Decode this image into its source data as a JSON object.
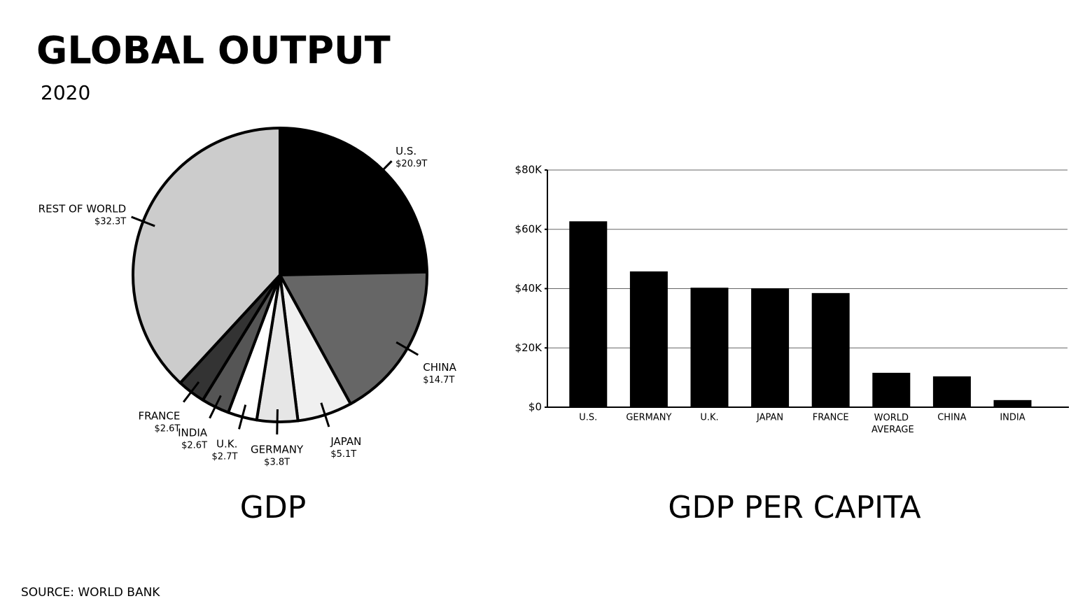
{
  "title": "GLOBAL OUTPUT",
  "subtitle": "2020",
  "source": "SOURCE: WORLD BANK",
  "chart_data": [
    {
      "type": "pie",
      "title": "GDP",
      "categories": [
        "U.S.",
        "CHINA",
        "JAPAN",
        "GERMANY",
        "U.K.",
        "INDIA",
        "FRANCE",
        "REST OF WORLD"
      ],
      "values": [
        20.9,
        14.7,
        5.1,
        3.8,
        2.7,
        2.6,
        2.6,
        32.3
      ],
      "value_labels": [
        "$20.9T",
        "$14.7T",
        "$5.1T",
        "$3.8T",
        "$2.7T",
        "$2.6T",
        "$2.6T",
        "$32.3T"
      ],
      "colors": [
        "#000000",
        "#666666",
        "#f0f0f0",
        "#e6e6e6",
        "#ffffff",
        "#555555",
        "#333333",
        "#cccccc"
      ]
    },
    {
      "type": "bar",
      "title": "GDP PER CAPITA",
      "categories": [
        "U.S.",
        "GERMANY",
        "U.K.",
        "JAPAN",
        "FRANCE",
        "WORLD AVERAGE",
        "CHINA",
        "INDIA"
      ],
      "values": [
        62700,
        45800,
        40300,
        40100,
        38500,
        11600,
        10400,
        2400
      ],
      "color": "#000000",
      "ylim": [
        0,
        80000
      ],
      "yticks": [
        {
          "value": 0,
          "label": "$0"
        },
        {
          "value": 20000,
          "label": "$20K"
        },
        {
          "value": 40000,
          "label": "$40K"
        },
        {
          "value": 60000,
          "label": "$60K"
        },
        {
          "value": 80000,
          "label": "$80K"
        }
      ],
      "grid": true
    }
  ]
}
